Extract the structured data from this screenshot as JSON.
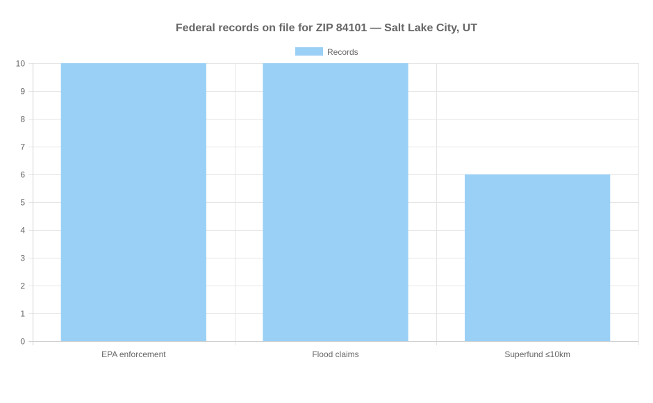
{
  "chart_data": {
    "type": "bar",
    "title": "Federal records on file for ZIP 84101 — Salt Lake City, UT",
    "categories": [
      "EPA enforcement",
      "Flood claims",
      "Superfund ≤10km"
    ],
    "series": [
      {
        "name": "Records",
        "values": [
          10,
          10,
          6
        ],
        "color": "#9ad0f5"
      }
    ],
    "xlabel": "",
    "ylabel": "",
    "ylim": [
      0,
      10
    ],
    "yticks": [
      0,
      1,
      2,
      3,
      4,
      5,
      6,
      7,
      8,
      9,
      10
    ],
    "grid": true,
    "legend_position": "top"
  }
}
